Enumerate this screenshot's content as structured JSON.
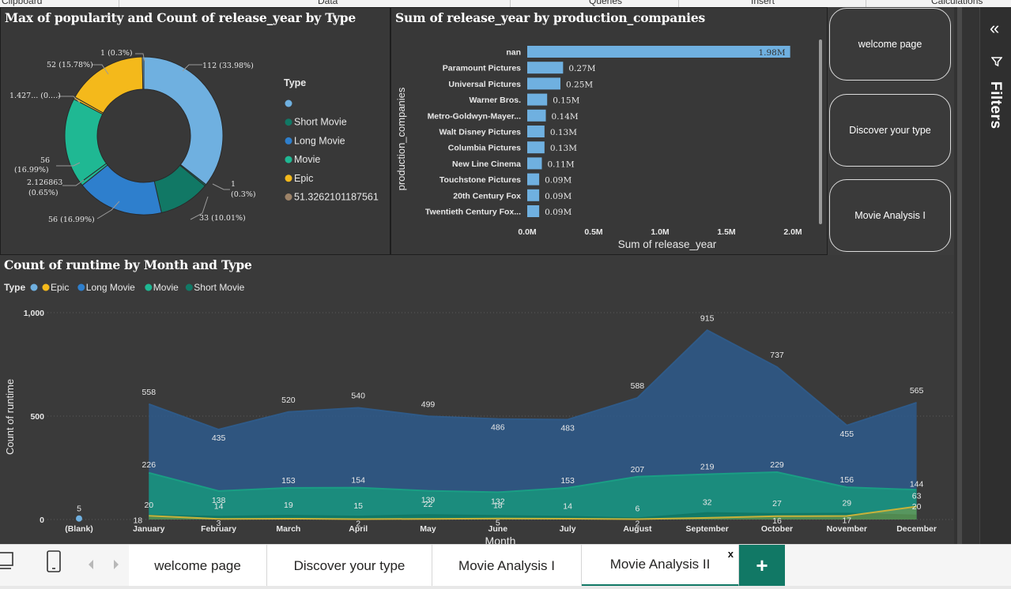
{
  "ribbon": {
    "groups": [
      "Clipboard",
      "Data",
      "Queries",
      "Insert",
      "Calculations"
    ]
  },
  "donut_chart": {
    "title": "Max of popularity and Count of release_year by Type",
    "legend_title": "Type",
    "legend_items": [
      {
        "label": "",
        "color": "#6fb0e0"
      },
      {
        "label": "Short Movie",
        "color": "#117865"
      },
      {
        "label": "Long Movie",
        "color": "#2e7fcd"
      },
      {
        "label": "Movie",
        "color": "#1fb893"
      },
      {
        "label": "Epic",
        "color": "#f4b91b"
      },
      {
        "label": "51.3262101187561",
        "color": "#9d8368"
      }
    ],
    "slice_labels": {
      "s112": "112 (33.98%)",
      "s1": "1",
      "s1b": "(0.3%)",
      "s33": "33 (10.01%)",
      "s56a": "56 (16.99%)",
      "s2": "2.126863",
      "s2b": "(0.65%)",
      "s56b": "56",
      "s56bb": "(16.99%)",
      "s1427": "1.427... (0....)",
      "s52": "52 (15.78%)",
      "s1top": "1 (0.3%)"
    }
  },
  "bar_chart": {
    "title": "Sum of release_year by production_companies",
    "y_axis_title": "production_companies",
    "x_axis_title": "Sum of release_year",
    "x_ticks": [
      "0.0M",
      "0.5M",
      "1.0M",
      "1.5M",
      "2.0M"
    ],
    "bars": [
      {
        "name": "nan",
        "label": "1.98M"
      },
      {
        "name": "Paramount Pictures",
        "label": "0.27M"
      },
      {
        "name": "Universal Pictures",
        "label": "0.25M"
      },
      {
        "name": "Warner Bros.",
        "label": "0.15M"
      },
      {
        "name": "Metro-Goldwyn-Mayer...",
        "label": "0.14M"
      },
      {
        "name": "Walt Disney Pictures",
        "label": "0.13M"
      },
      {
        "name": "Columbia Pictures",
        "label": "0.13M"
      },
      {
        "name": "New Line Cinema",
        "label": "0.11M"
      },
      {
        "name": "Touchstone Pictures",
        "label": "0.09M"
      },
      {
        "name": "20th Century Fox",
        "label": "0.09M"
      },
      {
        "name": "Twentieth Century Fox...",
        "label": "0.09M"
      }
    ]
  },
  "area_chart": {
    "title": "Count of runtime by Month and Type",
    "legend_title": "Type",
    "legend_items": [
      {
        "label": "",
        "color": "#6fb0e0"
      },
      {
        "label": "Epic",
        "color": "#f4b91b"
      },
      {
        "label": "Long Movie",
        "color": "#2e7fcd"
      },
      {
        "label": "Movie",
        "color": "#1fb893"
      },
      {
        "label": "Short Movie",
        "color": "#117865"
      }
    ],
    "y_axis_title": "Count of runtime",
    "x_axis_title": "Month",
    "y_ticks": [
      "1,000",
      "500",
      "0"
    ],
    "month_labels": [
      "(Blank)",
      "January",
      "February",
      "March",
      "April",
      "May",
      "June",
      "July",
      "August",
      "September",
      "October",
      "November",
      "December"
    ],
    "blank_label": "5",
    "long_labels": [
      "558",
      "435",
      "520",
      "540",
      "499",
      "486",
      "483",
      "588",
      "915",
      "737",
      "455",
      "565"
    ],
    "movie_labels": [
      "226",
      "138",
      "153",
      "154",
      "139",
      "132",
      "153",
      "207",
      "219",
      "229",
      "156",
      "144"
    ],
    "short_labels": [
      "20",
      "14",
      "19",
      "15",
      "22",
      "18",
      "14",
      "6",
      "32",
      "27",
      "29",
      "20"
    ],
    "epic_labels": [
      "18",
      "3",
      "",
      "2",
      "",
      "5",
      "",
      "2",
      "",
      "16",
      "17",
      "63"
    ]
  },
  "nav_buttons": [
    "welcome page",
    "Discover your type",
    "Movie Analysis I"
  ],
  "filters_pane": {
    "label": "Filters"
  },
  "tabs": {
    "items": [
      "welcome page",
      "Discover your type",
      "Movie Analysis I",
      "Movie Analysis II"
    ],
    "close": "x",
    "add": "+"
  },
  "chart_data": [
    {
      "type": "pie",
      "title": "Max of popularity and Count of release_year by Type",
      "legend_title": "Type",
      "legend_position": "right",
      "slices": [
        {
          "label": "112 (33.98%)",
          "value": 112,
          "percent": 33.98,
          "color": "#6fb0e0"
        },
        {
          "label": "1 (0.3%)",
          "value": 1,
          "percent": 0.3,
          "color": "#117865"
        },
        {
          "label": "33 (10.01%)",
          "value": 33,
          "percent": 10.01,
          "color": "#117865"
        },
        {
          "label": "56 (16.99%)",
          "value": 56,
          "percent": 16.99,
          "color": "#2e7fcd"
        },
        {
          "label": "2.126863 (0.65%)",
          "value": 2.126863,
          "percent": 0.65,
          "color": "#1fb893"
        },
        {
          "label": "56 (16.99%)",
          "value": 56,
          "percent": 16.99,
          "color": "#1fb893"
        },
        {
          "label": "1.427... (0....)",
          "value": 1.427,
          "percent": 0.43,
          "color": "#f4b91b"
        },
        {
          "label": "52 (15.78%)",
          "value": 52,
          "percent": 15.78,
          "color": "#f4b91b"
        },
        {
          "label": "1 (0.3%)",
          "value": 1,
          "percent": 0.3,
          "color": "#6fb0e0"
        }
      ]
    },
    {
      "type": "bar",
      "orientation": "horizontal",
      "title": "Sum of release_year by production_companies",
      "xlabel": "Sum of release_year",
      "ylabel": "production_companies",
      "xlim": [
        0,
        2000000
      ],
      "categories": [
        "nan",
        "Paramount Pictures",
        "Universal Pictures",
        "Warner Bros.",
        "Metro-Goldwyn-Mayer...",
        "Walt Disney Pictures",
        "Columbia Pictures",
        "New Line Cinema",
        "Touchstone Pictures",
        "20th Century Fox",
        "Twentieth Century Fox..."
      ],
      "values": [
        1980000,
        270000,
        250000,
        150000,
        140000,
        130000,
        130000,
        110000,
        90000,
        90000,
        90000
      ],
      "color": "#6fb0e0"
    },
    {
      "type": "area",
      "title": "Count of runtime by Month and Type",
      "xlabel": "Month",
      "ylabel": "Count of runtime",
      "ylim": [
        0,
        1000
      ],
      "legend_title": "Type",
      "legend_position": "top-left",
      "categories": [
        "(Blank)",
        "January",
        "February",
        "March",
        "April",
        "May",
        "June",
        "July",
        "August",
        "September",
        "October",
        "November",
        "December"
      ],
      "series": [
        {
          "name": "",
          "color": "#6fb0e0",
          "values": [
            5,
            null,
            null,
            null,
            null,
            null,
            null,
            null,
            null,
            null,
            null,
            null,
            null
          ]
        },
        {
          "name": "Long Movie",
          "color": "#2e7fcd",
          "values": [
            null,
            558,
            435,
            520,
            540,
            499,
            486,
            483,
            588,
            915,
            737,
            455,
            565
          ]
        },
        {
          "name": "Movie",
          "color": "#1fb893",
          "values": [
            null,
            226,
            138,
            153,
            154,
            139,
            132,
            153,
            207,
            219,
            229,
            156,
            144
          ]
        },
        {
          "name": "Short Movie",
          "color": "#117865",
          "values": [
            null,
            20,
            14,
            19,
            15,
            22,
            18,
            14,
            6,
            32,
            27,
            29,
            20
          ]
        },
        {
          "name": "Epic",
          "color": "#f4b91b",
          "values": [
            null,
            18,
            3,
            4,
            2,
            3,
            5,
            4,
            2,
            8,
            16,
            17,
            63
          ]
        }
      ]
    }
  ]
}
